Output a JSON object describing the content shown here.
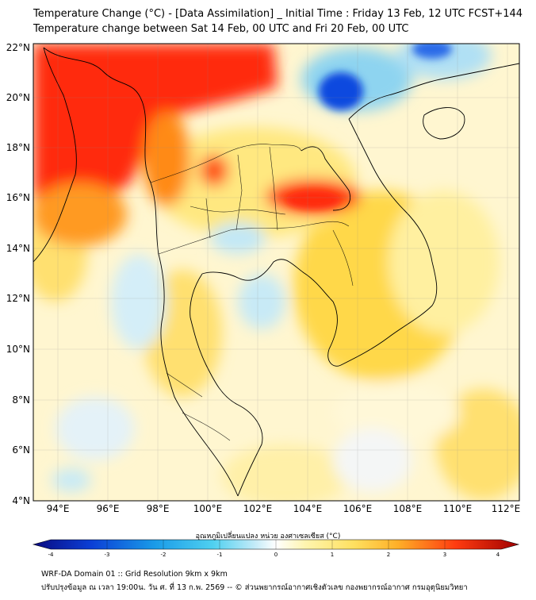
{
  "header": {
    "title_line1": "Temperature Change (°C) - [Data Assimilation] _ Initial Time : Friday 13 Feb, 12 UTC FCST+144",
    "title_line2": "Temperature change between Sat 14 Feb, 00 UTC and Fri 20 Feb, 00 UTC"
  },
  "map": {
    "lat_labels": [
      "22°N",
      "20°N",
      "18°N",
      "16°N",
      "14°N",
      "12°N",
      "10°N",
      "8°N",
      "6°N",
      "4°N"
    ],
    "lon_labels": [
      "94°E",
      "96°E",
      "98°E",
      "100°E",
      "102°E",
      "104°E",
      "106°E",
      "108°E",
      "110°E",
      "112°E"
    ],
    "lat_range": [
      4,
      22
    ],
    "lon_range": [
      93,
      112.5
    ],
    "colors": {
      "warm_strong": "#ff2a10",
      "warm": "#ffc020",
      "mild": "#fff0a8",
      "cool_strong": "#0a4adf",
      "cool": "#a8dcf2",
      "background": "#fff6d0",
      "border": "#000000"
    }
  },
  "colorbar": {
    "title": "อุณหภูมิเปลี่ยนแปลง หน่วย องศาเซลเซียส (°C)",
    "ticks": [
      "-4",
      "-3",
      "-2",
      "-1",
      "0",
      "1",
      "2",
      "3",
      "4"
    ],
    "range": [
      -4,
      4
    ],
    "colors": [
      "#0a0a80",
      "#0b3fd6",
      "#1a9be8",
      "#4fd0f0",
      "#a8e4f5",
      "#ffffff",
      "#fff5b0",
      "#ffd84a",
      "#ffa020",
      "#ff3c10",
      "#a00000"
    ]
  },
  "footer": {
    "line1": "WRF-DA Domain 01 :: Grid Resolution 9km x 9km",
    "line2": "ปรับปรุงข้อมูล ณ เวลา 19:00น. วัน ศ. ที่ 13 ก.พ. 2569 -- © ส่วนพยากรณ์อากาศเชิงตัวเลข กองพยากรณ์อากาศ กรมอุตุนิยมวิทยา"
  }
}
